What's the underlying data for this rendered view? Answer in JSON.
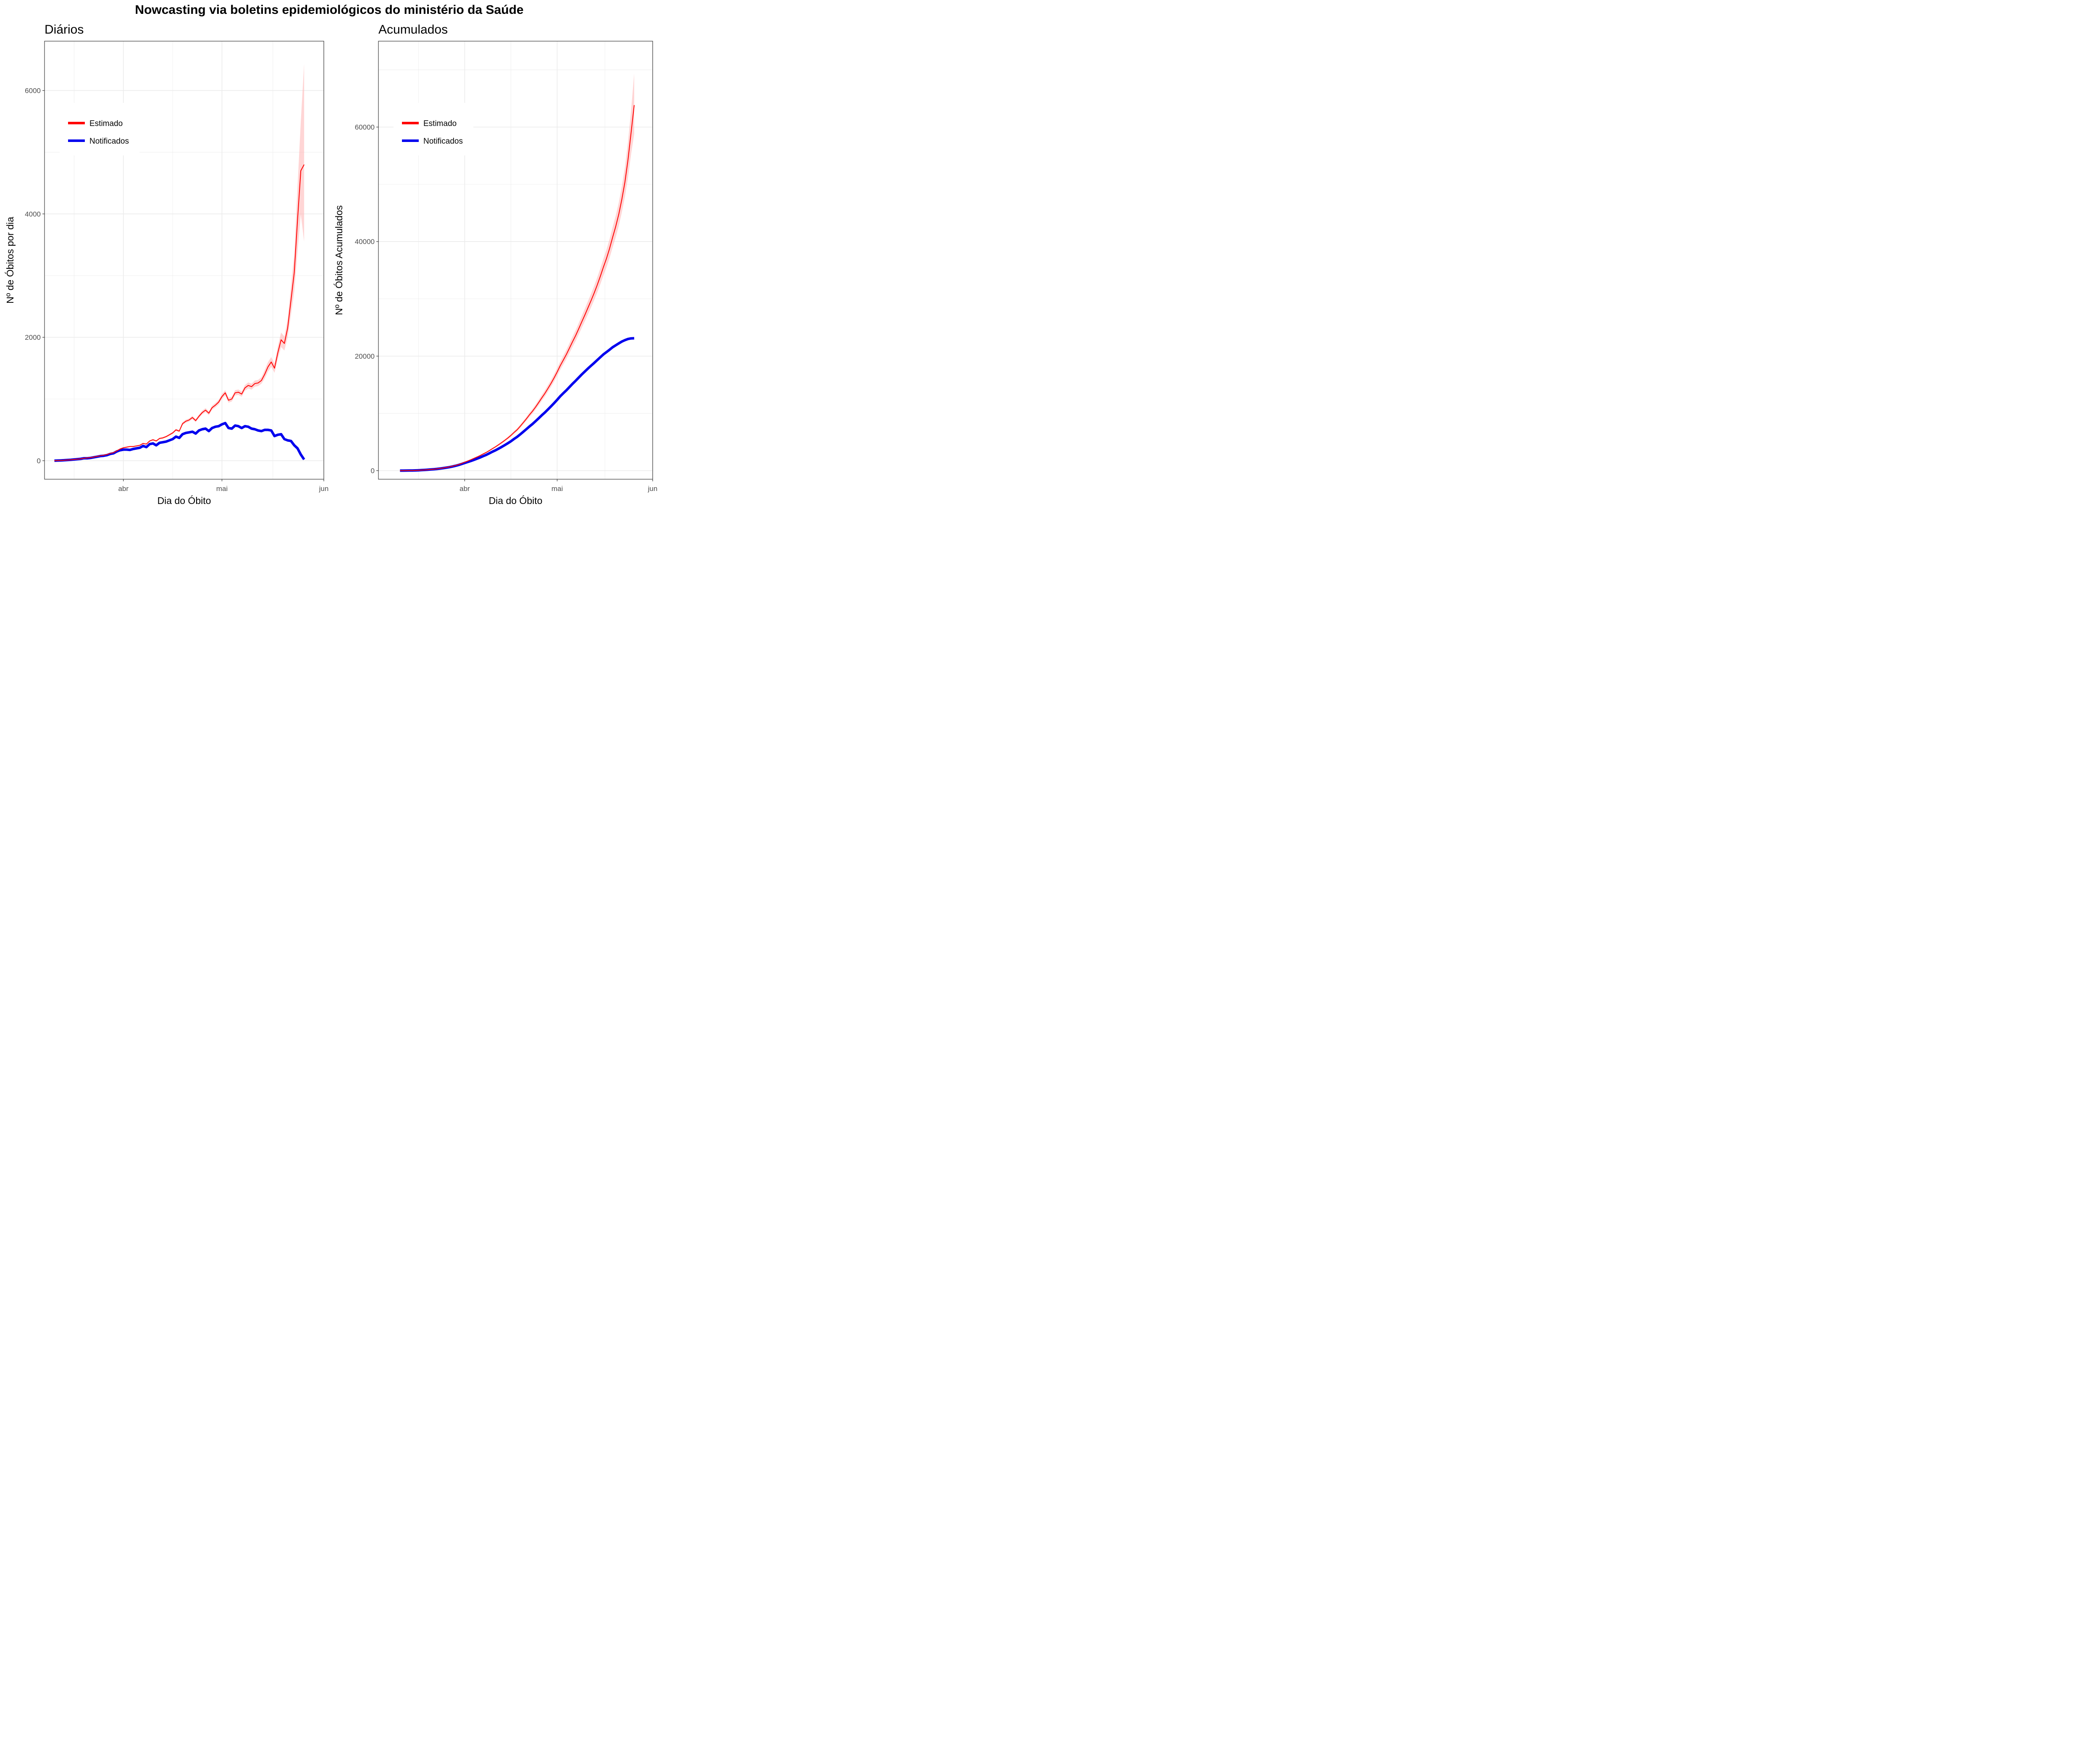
{
  "title": "Nowcasting via boletins epidemiológicos do ministério da Saúde",
  "colors": {
    "estimado": "#ff0000",
    "notificados": "#0000ee",
    "ribbon": "#ffb3b3",
    "grid": "#ebebeb",
    "panel_border": "#333333"
  },
  "chart_data": [
    {
      "type": "line",
      "title": "Diários",
      "xlabel": "Dia do Óbito",
      "ylabel": "Nº de Óbitos por dia",
      "x_start": "2020-03-11",
      "xlim": [
        "2020-03-08",
        "2020-06-01"
      ],
      "ylim": [
        -300,
        6800
      ],
      "x_ticks": [
        {
          "label": "abr",
          "date": "2020-04-01"
        },
        {
          "label": "mai",
          "date": "2020-05-01"
        },
        {
          "label": "jun",
          "date": "2020-06-01"
        }
      ],
      "y_ticks": [
        0,
        2000,
        4000,
        6000
      ],
      "legend": {
        "position": "top-left",
        "entries": [
          "Estimado",
          "Notificados"
        ]
      },
      "grid": true,
      "series": [
        {
          "name": "Estimado",
          "key": "estimado",
          "values": [
            0,
            3,
            5,
            8,
            12,
            15,
            20,
            25,
            30,
            40,
            45,
            50,
            60,
            70,
            80,
            90,
            100,
            120,
            130,
            160,
            190,
            210,
            220,
            230,
            230,
            240,
            250,
            280,
            270,
            320,
            340,
            320,
            360,
            370,
            390,
            420,
            450,
            500,
            480,
            600,
            640,
            660,
            700,
            650,
            720,
            780,
            820,
            770,
            860,
            900,
            950,
            1040,
            1100,
            980,
            1000,
            1100,
            1110,
            1080,
            1180,
            1220,
            1200,
            1250,
            1260,
            1300,
            1400,
            1520,
            1600,
            1500,
            1750,
            1960,
            1900,
            2150,
            2600,
            3050,
            3900,
            4700,
            4800
          ]
        },
        {
          "name": "Notificados",
          "key": "notificados",
          "values": [
            0,
            3,
            5,
            8,
            12,
            15,
            20,
            25,
            30,
            40,
            40,
            45,
            55,
            65,
            75,
            80,
            90,
            110,
            120,
            150,
            170,
            180,
            180,
            175,
            190,
            200,
            210,
            240,
            220,
            270,
            280,
            250,
            290,
            300,
            310,
            330,
            350,
            390,
            370,
            430,
            450,
            460,
            470,
            440,
            490,
            510,
            520,
            480,
            530,
            550,
            560,
            590,
            610,
            530,
            520,
            570,
            560,
            530,
            560,
            550,
            520,
            510,
            490,
            480,
            500,
            500,
            490,
            400,
            420,
            430,
            350,
            330,
            320,
            250,
            200,
            100,
            20
          ]
        },
        {
          "name": "Estimado-lower",
          "key": "estimado_lo",
          "values": [
            0,
            3,
            5,
            8,
            12,
            15,
            20,
            25,
            30,
            38,
            43,
            48,
            57,
            67,
            76,
            86,
            96,
            115,
            125,
            154,
            183,
            202,
            211,
            221,
            221,
            230,
            240,
            269,
            259,
            307,
            326,
            307,
            346,
            355,
            374,
            403,
            432,
            480,
            461,
            576,
            614,
            634,
            672,
            624,
            691,
            749,
            787,
            739,
            826,
            864,
            912,
            998,
            1056,
            941,
            960,
            1056,
            1066,
            1037,
            1133,
            1171,
            1152,
            1200,
            1210,
            1248,
            1330,
            1444,
            1520,
            1425,
            1645,
            1842,
            1786,
            1999,
            2366,
            2745,
            3393,
            3995,
            3552
          ]
        },
        {
          "name": "Estimado-upper",
          "key": "estimado_hi",
          "values": [
            0,
            3,
            5,
            8,
            12,
            15,
            20,
            25,
            30,
            42,
            47,
            52,
            63,
            73,
            84,
            94,
            104,
            125,
            135,
            166,
            197,
            218,
            229,
            239,
            239,
            250,
            260,
            291,
            281,
            333,
            354,
            333,
            374,
            385,
            406,
            437,
            468,
            520,
            499,
            624,
            666,
            686,
            728,
            676,
            749,
            811,
            853,
            801,
            894,
            936,
            988,
            1082,
            1144,
            1019,
            1040,
            1144,
            1154,
            1123,
            1227,
            1269,
            1248,
            1300,
            1310,
            1352,
            1470,
            1596,
            1680,
            1575,
            1855,
            2078,
            2014,
            2301,
            2834,
            3355,
            4446,
            5499,
            6432
          ]
        }
      ]
    },
    {
      "type": "line",
      "title": "Acumulados",
      "xlabel": "Dia do Óbito",
      "ylabel": "Nº de Óbitos Acumulados",
      "x_start": "2020-03-11",
      "xlim": [
        "2020-03-04",
        "2020-06-01"
      ],
      "ylim": [
        -1500,
        75000
      ],
      "x_ticks": [
        {
          "label": "abr",
          "date": "2020-04-01"
        },
        {
          "label": "mai",
          "date": "2020-05-01"
        },
        {
          "label": "jun",
          "date": "2020-06-01"
        }
      ],
      "y_ticks": [
        0,
        20000,
        40000,
        60000
      ],
      "legend": {
        "position": "top-left",
        "entries": [
          "Estimado",
          "Notificados"
        ]
      },
      "grid": true,
      "series": [
        {
          "name": "Estimado",
          "key": "estimado"
        },
        {
          "name": "Notificados",
          "key": "notificados"
        }
      ]
    }
  ]
}
